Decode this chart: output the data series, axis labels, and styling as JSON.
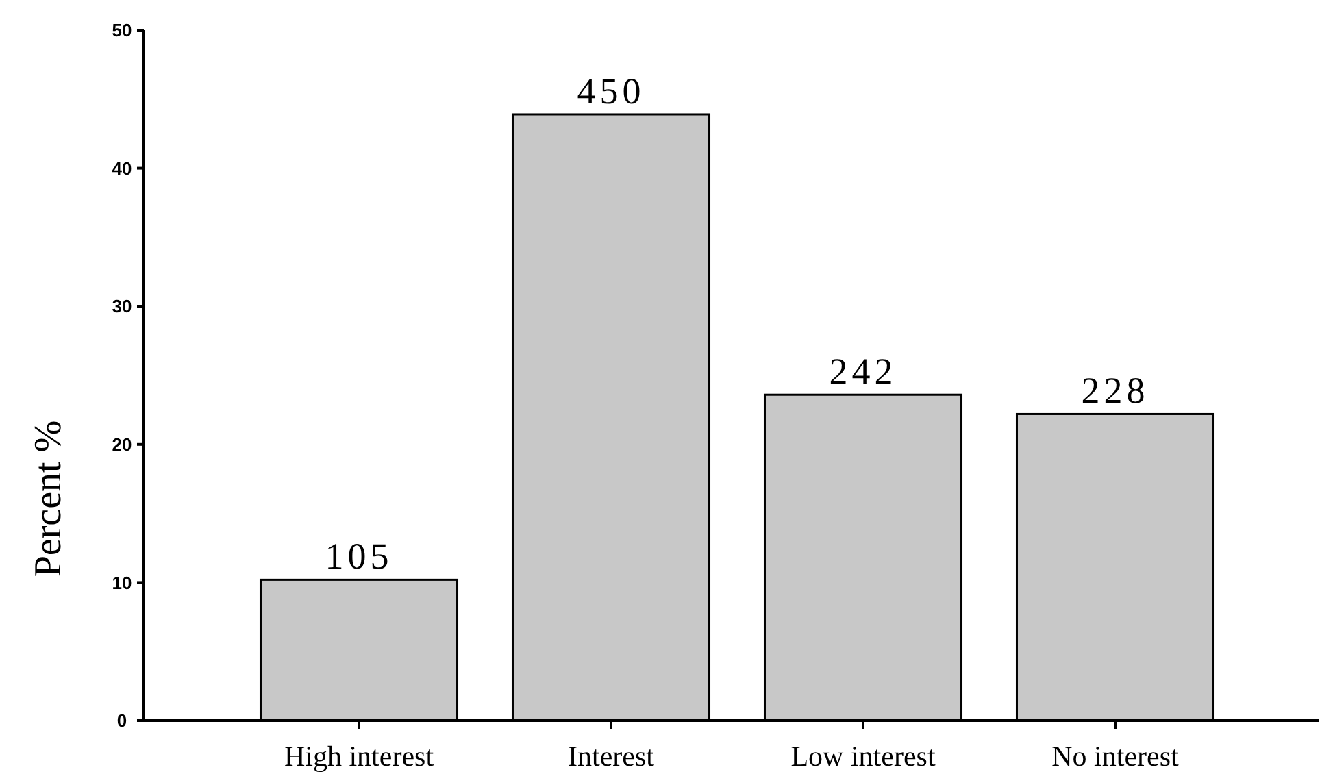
{
  "chart_data": {
    "type": "bar",
    "ylabel": "Percent %",
    "categories": [
      "High interest",
      "Interest",
      "Low interest",
      "No interest"
    ],
    "values": [
      10.2,
      43.9,
      23.6,
      22.2
    ],
    "annotations": [
      {
        "text": "105",
        "x": "High interest",
        "y": 10.2
      },
      {
        "text": "450",
        "x": "Interest",
        "y": 43.9
      },
      {
        "text": "242",
        "x": "Low interest",
        "y": 23.6
      },
      {
        "text": "228",
        "x": "No interest",
        "y": 22.2
      }
    ],
    "color": "#c8c8c8",
    "ylim": [
      0,
      50
    ],
    "yticks": [
      0,
      10,
      20,
      30,
      40,
      50
    ],
    "grid": false
  }
}
